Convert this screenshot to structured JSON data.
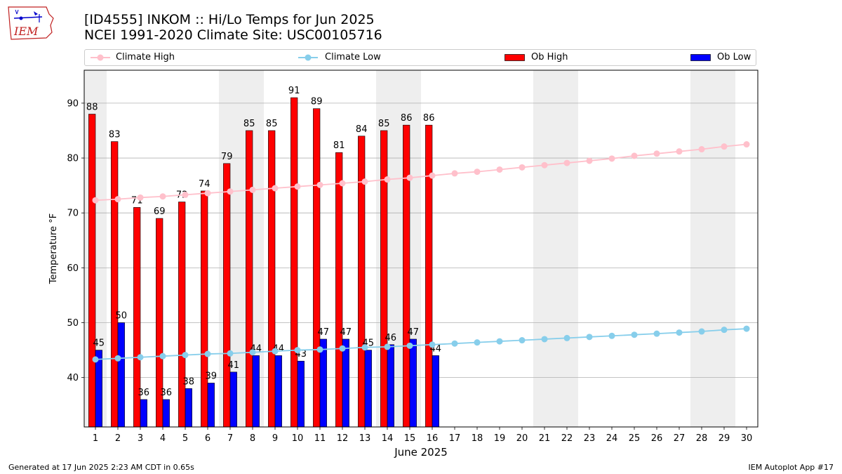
{
  "header": {
    "title_line1": "[ID4555] INKOM :: Hi/Lo Temps for Jun 2025",
    "title_line2": "NCEI 1991-2020 Climate Site: USC00105716",
    "logo_text": "IEM"
  },
  "legend": {
    "climate_high": "Climate High",
    "climate_low": "Climate Low",
    "ob_high": "Ob High",
    "ob_low": "Ob Low"
  },
  "footer": {
    "left": "Generated at 17 Jun 2025 2:23 AM CDT in 0.65s",
    "right": "IEM Autoplot App #17"
  },
  "colors": {
    "ob_high": "#ff0000",
    "ob_low": "#0000ff",
    "climate_high": "#ffc0cb",
    "climate_low": "#87ceeb",
    "weekend_shade": "#eeeeee",
    "grid": "#b0b0b0"
  },
  "chart_data": {
    "type": "bar",
    "xlabel": "June 2025",
    "ylabel": "Temperature °F",
    "xlim": [
      0.5,
      30.5
    ],
    "ylim": [
      31,
      96
    ],
    "yticks": [
      40,
      50,
      60,
      70,
      80,
      90
    ],
    "grid": "horizontal",
    "legend_position": "top",
    "days": [
      1,
      2,
      3,
      4,
      5,
      6,
      7,
      8,
      9,
      10,
      11,
      12,
      13,
      14,
      15,
      16,
      17,
      18,
      19,
      20,
      21,
      22,
      23,
      24,
      25,
      26,
      27,
      28,
      29,
      30
    ],
    "weekend_shading": [
      [
        1,
        1
      ],
      [
        7,
        8
      ],
      [
        14,
        15
      ],
      [
        21,
        22
      ],
      [
        28,
        29
      ]
    ],
    "series": [
      {
        "name": "Ob High",
        "kind": "bar",
        "values": [
          88,
          83,
          71,
          69,
          72,
          74,
          79,
          85,
          85,
          91,
          89,
          81,
          84,
          85,
          86,
          86
        ]
      },
      {
        "name": "Ob Low",
        "kind": "bar",
        "values": [
          45,
          50,
          36,
          36,
          38,
          39,
          41,
          44,
          44,
          43,
          47,
          47,
          45,
          46,
          47,
          44
        ]
      },
      {
        "name": "Climate High",
        "kind": "line",
        "values": [
          72.3,
          72.5,
          72.8,
          73.0,
          73.3,
          73.6,
          73.9,
          74.2,
          74.5,
          74.8,
          75.1,
          75.4,
          75.7,
          76.1,
          76.4,
          76.8,
          77.2,
          77.5,
          77.9,
          78.3,
          78.7,
          79.1,
          79.5,
          79.9,
          80.4,
          80.8,
          81.2,
          81.6,
          82.1,
          82.5
        ]
      },
      {
        "name": "Climate Low",
        "kind": "line",
        "values": [
          43.3,
          43.5,
          43.7,
          43.9,
          44.1,
          44.3,
          44.4,
          44.6,
          44.8,
          45.0,
          45.1,
          45.3,
          45.5,
          45.6,
          45.8,
          46.0,
          46.2,
          46.4,
          46.6,
          46.8,
          47.0,
          47.2,
          47.4,
          47.6,
          47.8,
          48.0,
          48.2,
          48.4,
          48.7,
          48.9
        ]
      }
    ]
  }
}
